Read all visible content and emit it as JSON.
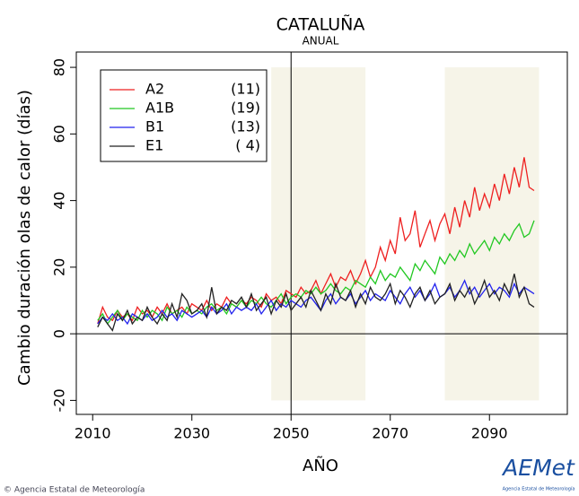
{
  "chart_data": {
    "type": "line",
    "title": "CATALUÑA",
    "subtitle": "ANUAL",
    "x_label": "AÑO",
    "y_label": "Cambio duración olas de calor (días)",
    "x": [
      2011,
      2012,
      2013,
      2014,
      2015,
      2016,
      2017,
      2018,
      2019,
      2020,
      2021,
      2022,
      2023,
      2024,
      2025,
      2026,
      2027,
      2028,
      2029,
      2030,
      2031,
      2032,
      2033,
      2034,
      2035,
      2036,
      2037,
      2038,
      2039,
      2040,
      2041,
      2042,
      2043,
      2044,
      2045,
      2046,
      2047,
      2048,
      2049,
      2050,
      2051,
      2052,
      2053,
      2054,
      2055,
      2056,
      2057,
      2058,
      2059,
      2060,
      2061,
      2062,
      2063,
      2064,
      2065,
      2066,
      2067,
      2068,
      2069,
      2070,
      2071,
      2072,
      2073,
      2074,
      2075,
      2076,
      2077,
      2078,
      2079,
      2080,
      2081,
      2082,
      2083,
      2084,
      2085,
      2086,
      2087,
      2088,
      2089,
      2090,
      2091,
      2092,
      2093,
      2094,
      2095,
      2096,
      2097,
      2098,
      2099
    ],
    "series": [
      {
        "name": "A2",
        "count_label": "(11)",
        "color": "#ee2020",
        "values": [
          3,
          8,
          5,
          4,
          7,
          5,
          6,
          4,
          8,
          6,
          7,
          5,
          8,
          6,
          9,
          6,
          7,
          8,
          6,
          9,
          8,
          7,
          10,
          7,
          9,
          8,
          11,
          9,
          8,
          10,
          9,
          11,
          10,
          8,
          12,
          10,
          11,
          9,
          13,
          12,
          11,
          14,
          12,
          13,
          16,
          12,
          15,
          18,
          14,
          17,
          16,
          19,
          15,
          18,
          22,
          17,
          20,
          26,
          22,
          28,
          24,
          35,
          28,
          30,
          37,
          26,
          30,
          34,
          28,
          33,
          36,
          30,
          38,
          32,
          40,
          35,
          44,
          37,
          42,
          38,
          45,
          40,
          48,
          42,
          50,
          44,
          53,
          44,
          43
        ]
      },
      {
        "name": "A1B",
        "count_label": "(19)",
        "color": "#22c822",
        "values": [
          4,
          6,
          3,
          5,
          7,
          4,
          6,
          5,
          4,
          7,
          5,
          7,
          6,
          4,
          8,
          6,
          7,
          5,
          8,
          6,
          7,
          6,
          8,
          9,
          7,
          8,
          6,
          9,
          8,
          10,
          8,
          10,
          9,
          11,
          9,
          8,
          10,
          12,
          9,
          11,
          12,
          11,
          13,
          12,
          14,
          12,
          13,
          15,
          13,
          12,
          14,
          13,
          16,
          15,
          14,
          17,
          15,
          19,
          16,
          18,
          17,
          20,
          18,
          16,
          21,
          19,
          22,
          20,
          18,
          23,
          21,
          24,
          22,
          25,
          23,
          27,
          24,
          26,
          28,
          25,
          29,
          27,
          30,
          28,
          31,
          33,
          29,
          30,
          34
        ]
      },
      {
        "name": "B1",
        "count_label": "(13)",
        "color": "#2222ee",
        "values": [
          3,
          5,
          4,
          6,
          4,
          5,
          3,
          6,
          5,
          4,
          6,
          4,
          5,
          7,
          5,
          6,
          4,
          7,
          6,
          5,
          6,
          7,
          5,
          8,
          6,
          7,
          9,
          6,
          8,
          7,
          8,
          7,
          9,
          6,
          8,
          10,
          7,
          9,
          8,
          10,
          9,
          8,
          10,
          11,
          9,
          7,
          10,
          12,
          9,
          11,
          10,
          12,
          9,
          11,
          13,
          10,
          12,
          11,
          10,
          13,
          11,
          9,
          12,
          14,
          11,
          13,
          10,
          12,
          15,
          11,
          12,
          14,
          11,
          13,
          16,
          12,
          14,
          11,
          13,
          15,
          12,
          14,
          13,
          11,
          15,
          12,
          14,
          13,
          12
        ]
      },
      {
        "name": "E1",
        "count_label": "( 4)",
        "color": "#222222",
        "values": [
          2,
          5,
          3,
          1,
          6,
          4,
          7,
          3,
          5,
          4,
          8,
          5,
          3,
          6,
          4,
          9,
          5,
          12,
          10,
          6,
          7,
          9,
          5,
          14,
          6,
          8,
          7,
          10,
          9,
          11,
          8,
          12,
          7,
          9,
          11,
          6,
          10,
          8,
          12,
          7,
          9,
          11,
          8,
          13,
          10,
          7,
          12,
          9,
          15,
          11,
          10,
          13,
          8,
          12,
          9,
          14,
          11,
          10,
          12,
          15,
          9,
          13,
          11,
          8,
          12,
          14,
          10,
          13,
          9,
          11,
          12,
          15,
          10,
          13,
          11,
          14,
          9,
          12,
          16,
          11,
          13,
          10,
          15,
          12,
          18,
          11,
          14,
          9,
          8
        ]
      }
    ],
    "xlim": [
      2006.7,
      2105.7
    ],
    "ylim": [
      -24.2,
      84.6
    ],
    "xticks": [
      2010,
      2030,
      2050,
      2070,
      2090
    ],
    "yticks": [
      -20,
      0,
      20,
      40,
      60,
      80
    ],
    "vline": 2050,
    "hline": 0,
    "shaded_periods": [
      [
        2046,
        2065
      ],
      [
        2081,
        2100
      ]
    ],
    "shaded_range": [
      -20,
      80
    ],
    "footer": "© Agencia Estatal de Meteorología",
    "logo": "AEMet",
    "logo_caption": "Agencia Estatal de Meteorología"
  }
}
